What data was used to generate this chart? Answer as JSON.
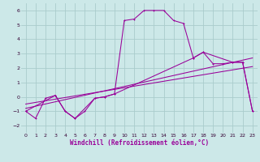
{
  "xlabel": "Windchill (Refroidissement éolien,°C)",
  "background_color": "#cce8e8",
  "grid_color": "#aacccc",
  "line_color": "#990099",
  "xlim": [
    -0.5,
    23.5
  ],
  "ylim": [
    -2.5,
    6.5
  ],
  "xticks": [
    0,
    1,
    2,
    3,
    4,
    5,
    6,
    7,
    8,
    9,
    10,
    11,
    12,
    13,
    14,
    15,
    16,
    17,
    18,
    19,
    20,
    21,
    22,
    23
  ],
  "yticks": [
    -2,
    -1,
    0,
    1,
    2,
    3,
    4,
    5,
    6
  ],
  "series1_x": [
    0,
    1,
    2,
    3,
    4,
    5,
    6,
    7,
    8,
    9,
    10,
    11,
    12,
    13,
    14,
    15,
    16,
    17,
    18,
    19,
    20,
    21,
    22,
    23
  ],
  "series1_y": [
    -1.0,
    -1.5,
    -0.1,
    0.1,
    -1.0,
    -1.5,
    -1.0,
    -0.1,
    0.0,
    0.2,
    5.3,
    5.4,
    6.0,
    6.0,
    6.0,
    5.3,
    5.1,
    2.7,
    3.1,
    2.3,
    2.3,
    2.4,
    2.4,
    -1.0
  ],
  "series2_x": [
    0,
    3,
    4,
    5,
    7,
    8,
    9,
    17,
    18,
    21,
    22,
    23
  ],
  "series2_y": [
    -1.0,
    0.1,
    -1.0,
    -1.5,
    -0.1,
    0.0,
    0.2,
    2.7,
    3.1,
    2.4,
    2.4,
    -1.0
  ],
  "series3_x": [
    0,
    23
  ],
  "series3_y": [
    -0.8,
    2.7
  ],
  "series4_x": [
    0,
    23
  ],
  "series4_y": [
    -0.5,
    2.1
  ]
}
